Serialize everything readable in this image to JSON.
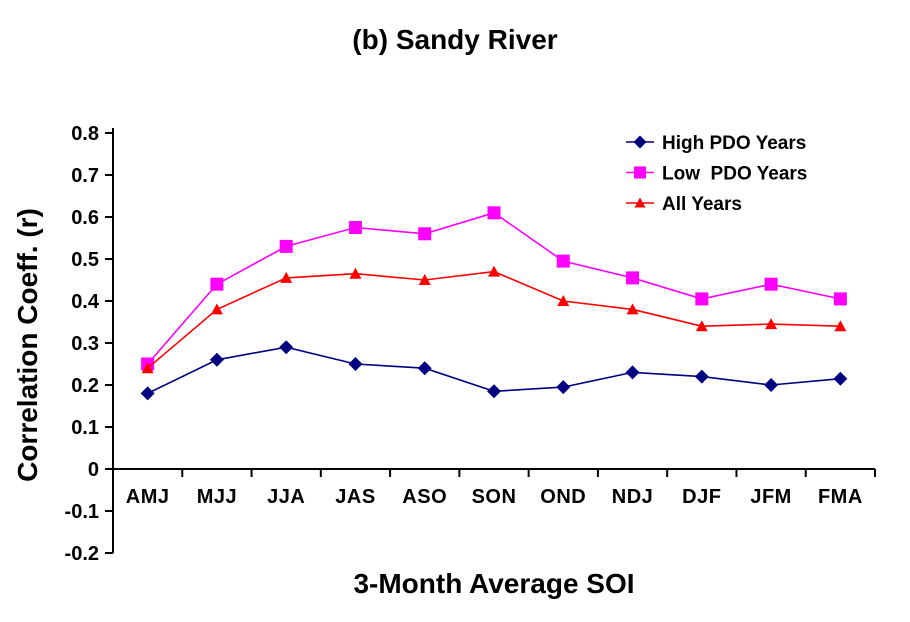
{
  "chart_data": {
    "type": "line",
    "title": "(b) Sandy River",
    "xlabel": "3-Month Average SOI",
    "ylabel": "Correlation Coeff. (r)",
    "categories": [
      "AMJ",
      "MJJ",
      "JJA",
      "JAS",
      "ASO",
      "SON",
      "OND",
      "NDJ",
      "DJF",
      "JFM",
      "FMA"
    ],
    "ylim": [
      -0.2,
      0.8
    ],
    "ytick_values": [
      0.8,
      0.7,
      0.6,
      0.5,
      0.4,
      0.3,
      0.2,
      0.1,
      0,
      -0.1,
      -0.2
    ],
    "ytick_labels": [
      "0.8",
      "0.7",
      "0.6",
      "0.5",
      "0.4",
      "0.3",
      "0.2",
      "0.1",
      "0",
      "-0.1",
      "-0.2"
    ],
    "grid": false,
    "legend_position": "inside-top-right",
    "axis_color": "#000000",
    "background_color": "#FFFFFF",
    "series": [
      {
        "name": "High PDO Years",
        "color": "#000080",
        "marker": "diamond",
        "values": [
          0.18,
          0.26,
          0.29,
          0.25,
          0.24,
          0.185,
          0.195,
          0.23,
          0.22,
          0.2,
          0.215
        ]
      },
      {
        "name": "Low  PDO Years",
        "color": "#FF00FF",
        "marker": "square",
        "values": [
          0.25,
          0.44,
          0.53,
          0.575,
          0.56,
          0.61,
          0.495,
          0.455,
          0.405,
          0.44,
          0.405
        ]
      },
      {
        "name": "All Years",
        "color": "#FF0000",
        "marker": "triangle",
        "values": [
          0.24,
          0.38,
          0.455,
          0.465,
          0.45,
          0.47,
          0.4,
          0.38,
          0.34,
          0.345,
          0.34
        ]
      }
    ]
  }
}
